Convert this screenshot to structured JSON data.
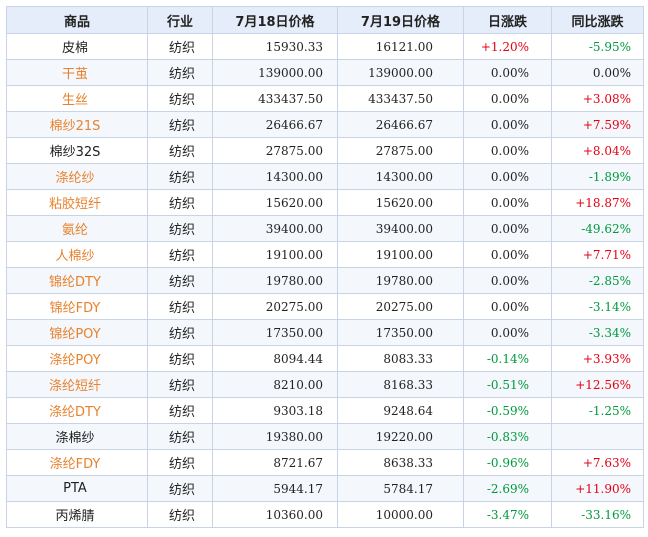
{
  "headers": [
    "商品",
    "行业",
    "7月18日价格",
    "7月19日价格",
    "日涨跌",
    "同比涨跌"
  ],
  "colors": {
    "link": "#e8822d",
    "up": "#e60012",
    "down": "#009a3d",
    "header_bg": "#e4edf9",
    "border": "#c8d4e6"
  },
  "rows": [
    {
      "name": "皮棉",
      "link": false,
      "industry": "纺织",
      "p18": "15930.33",
      "p19": "16121.00",
      "daily": "+1.20%",
      "daily_dir": "up",
      "yoy": "-5.95%",
      "yoy_dir": "down"
    },
    {
      "name": "干茧",
      "link": true,
      "industry": "纺织",
      "p18": "139000.00",
      "p19": "139000.00",
      "daily": "0.00%",
      "daily_dir": "flat",
      "yoy": "0.00%",
      "yoy_dir": "flat"
    },
    {
      "name": "生丝",
      "link": true,
      "industry": "纺织",
      "p18": "433437.50",
      "p19": "433437.50",
      "daily": "0.00%",
      "daily_dir": "flat",
      "yoy": "+3.08%",
      "yoy_dir": "up"
    },
    {
      "name": "棉纱21S",
      "link": true,
      "industry": "纺织",
      "p18": "26466.67",
      "p19": "26466.67",
      "daily": "0.00%",
      "daily_dir": "flat",
      "yoy": "+7.59%",
      "yoy_dir": "up"
    },
    {
      "name": "棉纱32S",
      "link": false,
      "industry": "纺织",
      "p18": "27875.00",
      "p19": "27875.00",
      "daily": "0.00%",
      "daily_dir": "flat",
      "yoy": "+8.04%",
      "yoy_dir": "up"
    },
    {
      "name": "涤纶纱",
      "link": true,
      "industry": "纺织",
      "p18": "14300.00",
      "p19": "14300.00",
      "daily": "0.00%",
      "daily_dir": "flat",
      "yoy": "-1.89%",
      "yoy_dir": "down"
    },
    {
      "name": "粘胶短纤",
      "link": true,
      "industry": "纺织",
      "p18": "15620.00",
      "p19": "15620.00",
      "daily": "0.00%",
      "daily_dir": "flat",
      "yoy": "+18.87%",
      "yoy_dir": "up"
    },
    {
      "name": "氨纶",
      "link": true,
      "industry": "纺织",
      "p18": "39400.00",
      "p19": "39400.00",
      "daily": "0.00%",
      "daily_dir": "flat",
      "yoy": "-49.62%",
      "yoy_dir": "down"
    },
    {
      "name": "人棉纱",
      "link": true,
      "industry": "纺织",
      "p18": "19100.00",
      "p19": "19100.00",
      "daily": "0.00%",
      "daily_dir": "flat",
      "yoy": "+7.71%",
      "yoy_dir": "up"
    },
    {
      "name": "锦纶DTY",
      "link": true,
      "industry": "纺织",
      "p18": "19780.00",
      "p19": "19780.00",
      "daily": "0.00%",
      "daily_dir": "flat",
      "yoy": "-2.85%",
      "yoy_dir": "down"
    },
    {
      "name": "锦纶FDY",
      "link": true,
      "industry": "纺织",
      "p18": "20275.00",
      "p19": "20275.00",
      "daily": "0.00%",
      "daily_dir": "flat",
      "yoy": "-3.14%",
      "yoy_dir": "down"
    },
    {
      "name": "锦纶POY",
      "link": true,
      "industry": "纺织",
      "p18": "17350.00",
      "p19": "17350.00",
      "daily": "0.00%",
      "daily_dir": "flat",
      "yoy": "-3.34%",
      "yoy_dir": "down"
    },
    {
      "name": "涤纶POY",
      "link": true,
      "industry": "纺织",
      "p18": "8094.44",
      "p19": "8083.33",
      "daily": "-0.14%",
      "daily_dir": "down",
      "yoy": "+3.93%",
      "yoy_dir": "up"
    },
    {
      "name": "涤纶短纤",
      "link": true,
      "industry": "纺织",
      "p18": "8210.00",
      "p19": "8168.33",
      "daily": "-0.51%",
      "daily_dir": "down",
      "yoy": "+12.56%",
      "yoy_dir": "up"
    },
    {
      "name": "涤纶DTY",
      "link": true,
      "industry": "纺织",
      "p18": "9303.18",
      "p19": "9248.64",
      "daily": "-0.59%",
      "daily_dir": "down",
      "yoy": "-1.25%",
      "yoy_dir": "down"
    },
    {
      "name": "涤棉纱",
      "link": false,
      "industry": "纺织",
      "p18": "19380.00",
      "p19": "19220.00",
      "daily": "-0.83%",
      "daily_dir": "down",
      "yoy": "",
      "yoy_dir": "flat"
    },
    {
      "name": "涤纶FDY",
      "link": true,
      "industry": "纺织",
      "p18": "8721.67",
      "p19": "8638.33",
      "daily": "-0.96%",
      "daily_dir": "down",
      "yoy": "+7.63%",
      "yoy_dir": "up"
    },
    {
      "name": "PTA",
      "link": false,
      "industry": "纺织",
      "p18": "5944.17",
      "p19": "5784.17",
      "daily": "-2.69%",
      "daily_dir": "down",
      "yoy": "+11.90%",
      "yoy_dir": "up"
    },
    {
      "name": "丙烯腈",
      "link": false,
      "industry": "纺织",
      "p18": "10360.00",
      "p19": "10000.00",
      "daily": "-3.47%",
      "daily_dir": "down",
      "yoy": "-33.16%",
      "yoy_dir": "down"
    }
  ]
}
